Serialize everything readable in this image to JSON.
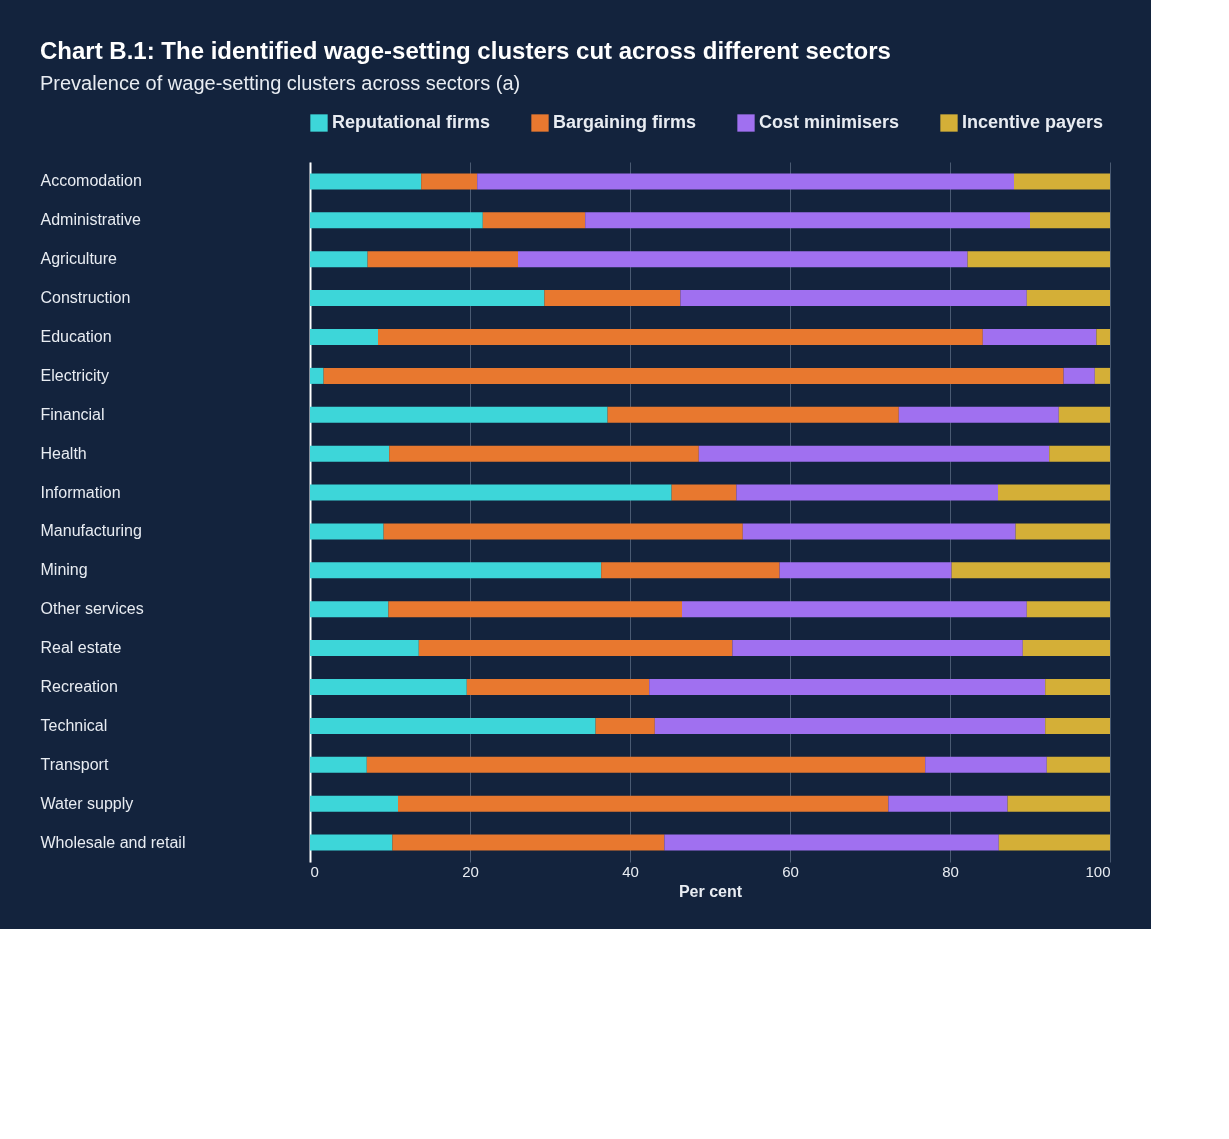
{
  "chart_data": {
    "type": "bar",
    "orientation": "horizontal",
    "stacked": true,
    "title": "Chart B.1: The identified wage-setting clusters cut across different sectors",
    "subtitle": "Prevalence of wage-setting clusters across sectors (a)",
    "xlabel": "Per cent",
    "categories": [
      "Accomodation",
      "Administrative",
      "Agriculture",
      "Construction",
      "Education",
      "Electricity",
      "Financial",
      "Health",
      "Information",
      "Manufacturing",
      "Mining",
      "Other services",
      "Real estate",
      "Recreation",
      "Technical",
      "Transport",
      "Water supply",
      "Wholesale and retail"
    ],
    "series": [
      {
        "name": "Reputational firms",
        "color": "#3dd6d9",
        "values": [
          13.9,
          21.6,
          7.2,
          29.3,
          8.5,
          1.7,
          37.2,
          9.9,
          45.2,
          9.2,
          36.4,
          9.8,
          13.6,
          19.6,
          35.7,
          7.1,
          11.0,
          10.3
        ]
      },
      {
        "name": "Bargaining firms",
        "color": "#e8782f",
        "values": [
          7.0,
          12.8,
          18.8,
          17.0,
          75.6,
          92.5,
          36.4,
          38.7,
          8.1,
          44.9,
          22.3,
          36.7,
          39.2,
          22.8,
          7.4,
          69.8,
          61.3,
          34.0
        ]
      },
      {
        "name": "Cost minimisers",
        "color": "#a070f0",
        "values": [
          67.1,
          55.6,
          56.2,
          43.3,
          14.2,
          3.9,
          20.0,
          43.8,
          32.7,
          34.1,
          21.5,
          43.1,
          36.3,
          49.5,
          48.8,
          15.2,
          14.9,
          41.8
        ]
      },
      {
        "name": "Incentive payers",
        "color": "#d4af37",
        "values": [
          12.0,
          10.0,
          17.8,
          10.4,
          1.7,
          1.9,
          6.4,
          7.6,
          14.0,
          11.8,
          19.8,
          10.4,
          10.9,
          8.1,
          8.1,
          7.9,
          12.8,
          13.9
        ]
      }
    ],
    "xlim": [
      0,
      100
    ],
    "xticks": [
      0,
      20,
      40,
      60,
      80,
      100
    ],
    "grid": "x",
    "legend": "top"
  }
}
